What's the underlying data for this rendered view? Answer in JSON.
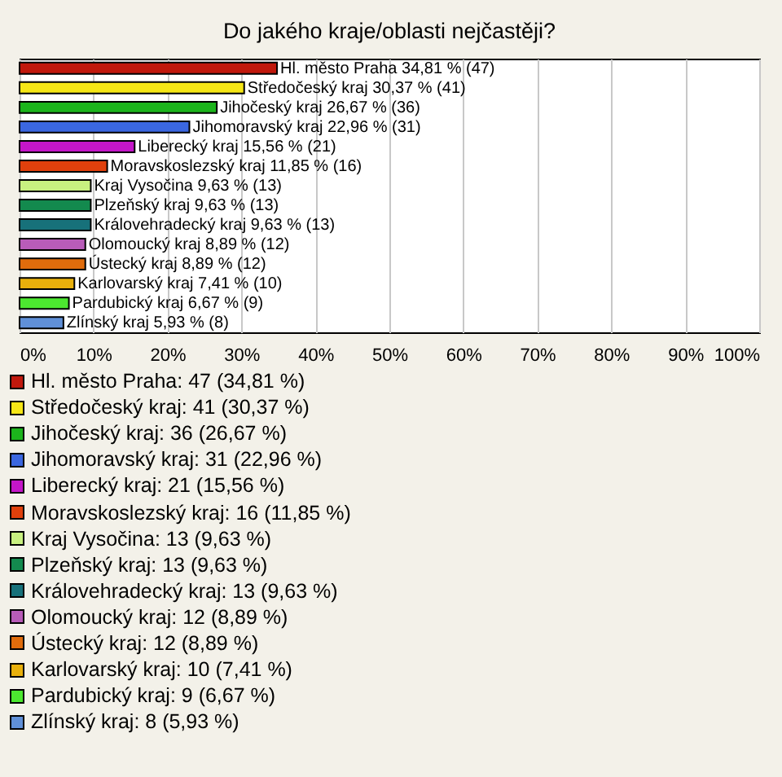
{
  "chart_data": {
    "type": "bar",
    "orientation": "horizontal",
    "title": "Do jakého kraje/oblasti nejčastěji?",
    "categories": [
      null,
      null,
      null,
      null,
      null,
      null,
      null,
      null,
      null,
      null,
      null,
      null,
      null,
      null
    ],
    "values": [
      34.81,
      30.37,
      26.67,
      22.96,
      15.56,
      11.85,
      9.63,
      9.63,
      9.63,
      8.89,
      8.89,
      7.41,
      6.67,
      5.93
    ],
    "colors": [
      "#c0180c",
      "#f5e616",
      "#1cb41c",
      "#3b67e0",
      "#c416c8",
      "#e0400c",
      "#c8f080",
      "#138a4e",
      "#17717a",
      "#b85cb8",
      "#e06c0c",
      "#e8b00c",
      "#4ce830",
      "#6090d8"
    ],
    "value_labels": [
      "Hl. město Praha 34,81 % (47)",
      "Středočeský kraj 30,37 % (41)",
      "Jihočeský kraj 26,67 % (36)",
      "Jihomoravský kraj 22,96 % (31)",
      "Liberecký kraj 15,56 % (21)",
      "Moravskoslezský kraj 11,85 % (16)",
      "Kraj Vysočina 9,63 % (13)",
      "Plzeňský kraj 9,63 % (13)",
      "Královehradecký kraj 9,63 % (13)",
      "Olomoucký kraj 8,89 % (12)",
      "Ústecký kraj 8,89 % (12)",
      "Karlovarský kraj 7,41 % (10)",
      "Pardubický kraj 6,67 % (9)",
      "Zlínský kraj 5,93 % (8)"
    ],
    "annotations": [
      "Hl. město Praha: 47 (34,81 %)",
      "Středočeský kraj: 41 (30,37 %)",
      "Jihočeský kraj: 36 (26,67 %)",
      "Jihomoravský kraj: 31 (22,96 %)",
      "Liberecký kraj: 21 (15,56 %)",
      "Moravskoslezský kraj: 16 (11,85 %)",
      "Kraj Vysočina: 13 (9,63 %)",
      "Plzeňský kraj: 13 (9,63 %)",
      "Královehradecký kraj: 13 (9,63 %)",
      "Olomoucký kraj: 12 (8,89 %)",
      "Ústecký kraj: 12 (8,89 %)",
      "Karlovarský kraj: 10 (7,41 %)",
      "Pardubický kraj: 9 (6,67 %)",
      "Zlínský kraj: 8 (5,93 %)"
    ],
    "xlim": [
      0,
      100
    ],
    "xticks": [
      {
        "value": 0,
        "label": "0%"
      },
      {
        "value": 10,
        "label": "10%"
      },
      {
        "value": 20,
        "label": "20%"
      },
      {
        "value": 30,
        "label": "30%"
      },
      {
        "value": 40,
        "label": "40%"
      },
      {
        "value": 50,
        "label": "50%"
      },
      {
        "value": 60,
        "label": "60%"
      },
      {
        "value": 70,
        "label": "70%"
      },
      {
        "value": 80,
        "label": "80%"
      },
      {
        "value": 90,
        "label": "90%"
      },
      {
        "value": 100,
        "label": "100%"
      }
    ],
    "grid": "x",
    "tick_labels": "x"
  }
}
